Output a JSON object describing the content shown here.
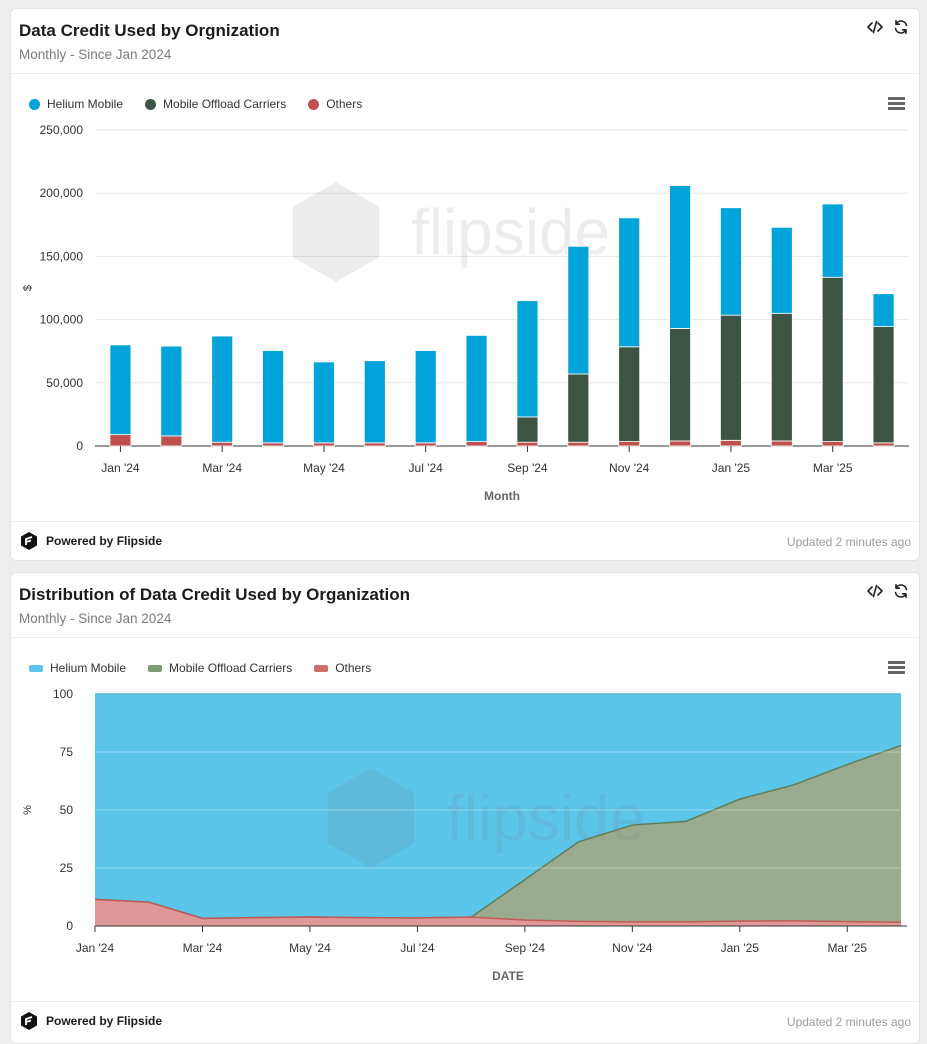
{
  "colors": {
    "helium": "#00a3da",
    "offload": "#3b5443",
    "others": "#c0504d",
    "heliumArea": "#5bc5ea",
    "offloadArea": "#9aab8e",
    "othersArea": "#e09797"
  },
  "footer": {
    "brand": "Powered by Flipside",
    "updated": "Updated 2 minutes ago"
  },
  "watermark": "flipside",
  "icons": {
    "embed": "code-icon",
    "refresh": "refresh-icon",
    "menu": "hamburger-menu-icon",
    "logo": "flipside-logo-icon"
  },
  "chart_data": [
    {
      "type": "bar",
      "stacked": true,
      "title": "Data Credit Used by Orgnization",
      "subtitle": "Monthly - Since Jan 2024",
      "xlabel": "Month",
      "ylabel": "$",
      "ylim": [
        0,
        250000
      ],
      "yticks": [
        "0",
        "50,000",
        "100,000",
        "150,000",
        "200,000",
        "250,000"
      ],
      "xtick_labels": [
        "Jan '24",
        "Mar '24",
        "May '24",
        "Jul '24",
        "Sep '24",
        "Nov '24",
        "Jan '25",
        "Mar '25"
      ],
      "categories": [
        "2024-01",
        "2024-02",
        "2024-03",
        "2024-04",
        "2024-05",
        "2024-06",
        "2024-07",
        "2024-08",
        "2024-09",
        "2024-10",
        "2024-11",
        "2024-12",
        "2025-01",
        "2025-02",
        "2025-03",
        "2025-04"
      ],
      "series": [
        {
          "name": "Helium Mobile",
          "values": [
            71000,
            71000,
            84000,
            73000,
            64000,
            65000,
            73000,
            84000,
            92000,
            101000,
            102000,
            113000,
            85000,
            68000,
            58000,
            26000
          ]
        },
        {
          "name": "Mobile Offload Carriers",
          "values": [
            0,
            0,
            0,
            0,
            0,
            0,
            0,
            0,
            20000,
            54000,
            75000,
            89000,
            99000,
            101000,
            130000,
            92000
          ]
        },
        {
          "name": "Others",
          "values": [
            9000,
            8000,
            3000,
            2500,
            2500,
            2500,
            2500,
            3500,
            3000,
            3000,
            3500,
            4000,
            4500,
            4000,
            3500,
            2500
          ]
        }
      ],
      "legend": "top-left",
      "grid": true
    },
    {
      "type": "area",
      "stacked": true,
      "percent": true,
      "title": "Distribution of Data Credit Used by Organization",
      "subtitle": "Monthly - Since Jan 2024",
      "xlabel": "DATE",
      "ylabel": "%",
      "ylim": [
        0,
        100
      ],
      "yticks": [
        "0",
        "25",
        "50",
        "75",
        "100"
      ],
      "xtick_labels": [
        "Jan '24",
        "Mar '24",
        "May '24",
        "Jul '24",
        "Sep '24",
        "Nov '24",
        "Jan '25",
        "Mar '25"
      ],
      "categories": [
        "2024-01",
        "2024-02",
        "2024-03",
        "2024-04",
        "2024-05",
        "2024-06",
        "2024-07",
        "2024-08",
        "2024-09",
        "2024-10",
        "2024-11",
        "2024-12",
        "2025-01",
        "2025-02",
        "2025-03",
        "2025-04"
      ],
      "series": [
        {
          "name": "Others",
          "values": [
            11.5,
            10.3,
            3.3,
            3.6,
            3.9,
            3.6,
            3.5,
            3.8,
            2.6,
            2.0,
            1.8,
            1.8,
            2.1,
            2.2,
            1.9,
            1.6
          ]
        },
        {
          "name": "Mobile Offload Carriers",
          "values": [
            0,
            0,
            0,
            0,
            0,
            0,
            0,
            0,
            17.4,
            34.3,
            41.7,
            43.3,
            52.6,
            58.6,
            67.7,
            76.2
          ]
        },
        {
          "name": "Helium Mobile",
          "values": [
            88.5,
            89.7,
            96.7,
            96.4,
            96.1,
            96.4,
            96.5,
            96.2,
            80.0,
            63.7,
            56.5,
            54.9,
            45.3,
            39.2,
            30.4,
            22.2
          ]
        }
      ],
      "legend": "top-left",
      "grid": true
    }
  ]
}
